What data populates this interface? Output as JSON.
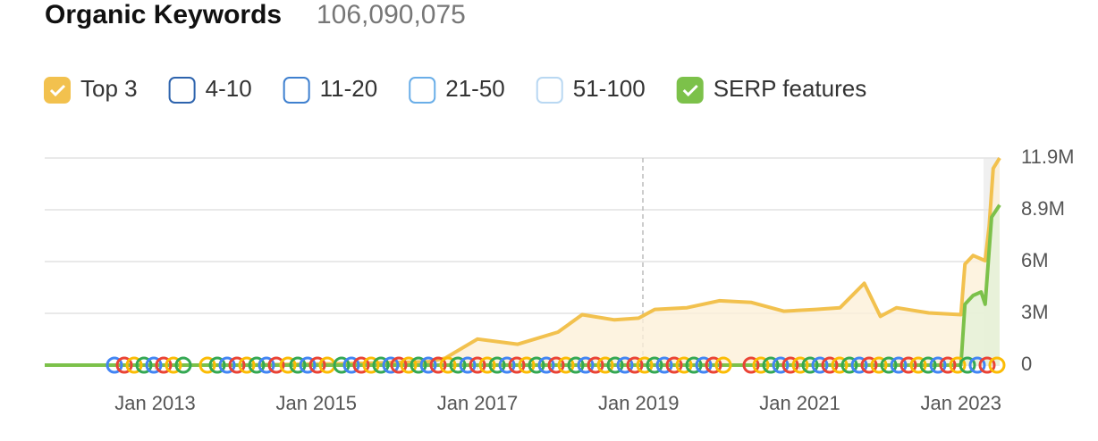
{
  "chart_data": {
    "type": "line",
    "title": "Organic Keywords",
    "subtitle": "106,090,075",
    "xlim": [
      2011.63,
      2023.48
    ],
    "xticks": [
      {
        "value": 2013,
        "label": "Jan 2013"
      },
      {
        "value": 2015,
        "label": "Jan 2015"
      },
      {
        "value": 2017,
        "label": "Jan 2017"
      },
      {
        "value": 2019,
        "label": "Jan 2019"
      },
      {
        "value": 2021,
        "label": "Jan 2021"
      },
      {
        "value": 2023,
        "label": "Jan 2023"
      }
    ],
    "ylim": [
      0,
      11900000
    ],
    "yticks": [
      0,
      {
        "value": 2975000,
        "label": "3M"
      },
      {
        "value": 5950000,
        "label": "6M"
      },
      {
        "value": 8925000,
        "label": "8.9M"
      },
      {
        "value": 11900000,
        "label": "11.9M"
      }
    ],
    "grid": true,
    "series": [
      {
        "name": "Top 3",
        "color": "#f2c14e",
        "fill": "#fdf0d8",
        "x": [
          2011.63,
          2014,
          2015.5,
          2016.4,
          2016.6,
          2017,
          2017.5,
          2018,
          2018.3,
          2018.7,
          2019,
          2019.2,
          2019.6,
          2020,
          2020.4,
          2020.8,
          2021.2,
          2021.5,
          2021.8,
          2022,
          2022.2,
          2022.6,
          2023,
          2023.05,
          2023.15,
          2023.3,
          2023.35,
          2023.4,
          2023.48
        ],
        "values": [
          0,
          0,
          100000,
          200000,
          400000,
          1500000,
          1200000,
          1900000,
          2900000,
          2600000,
          2700000,
          3200000,
          3300000,
          3700000,
          3600000,
          3100000,
          3200000,
          3300000,
          4700000,
          2800000,
          3300000,
          3000000,
          2900000,
          5800000,
          6300000,
          6000000,
          8000000,
          11300000,
          11900000
        ]
      },
      {
        "name": "SERP features",
        "color": "#7cc14a",
        "fill": "#e3f1d8",
        "x": [
          2011.63,
          2023,
          2023.05,
          2023.15,
          2023.25,
          2023.3,
          2023.38,
          2023.48
        ],
        "values": [
          0,
          0,
          3500000,
          4000000,
          4200000,
          3500000,
          8500000,
          9200000
        ]
      }
    ],
    "legend_items": [
      {
        "name": "4-10",
        "color": "#2d63ad"
      },
      {
        "name": "11-20",
        "color": "#3f80cf"
      },
      {
        "name": "21-50",
        "color": "#6aaee8"
      },
      {
        "name": "51-100",
        "color": "#b9d8f2"
      }
    ]
  }
}
